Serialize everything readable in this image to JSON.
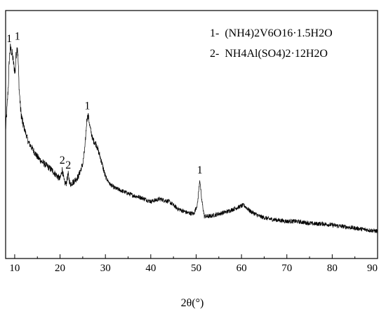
{
  "chart_data": {
    "type": "line",
    "title": "",
    "xlabel": "2θ(°)",
    "ylabel": "",
    "xlim": [
      8,
      90
    ],
    "ylim": [
      0,
      100
    ],
    "grid": false,
    "legend_position": "top-right",
    "x_ticks": [
      "10",
      "20",
      "30",
      "40",
      "50",
      "60",
      "70",
      "80",
      "90"
    ],
    "x_tick_values": [
      10,
      20,
      30,
      40,
      50,
      60,
      70,
      80,
      90
    ],
    "legend": [
      {
        "number": "1-",
        "formula": "(NH4)2V6O16·1.5H2O"
      },
      {
        "number": "2-",
        "formula": "NH4Al(SO4)2·12H2O"
      }
    ],
    "peak_labels": [
      {
        "text": "1",
        "x": 8.8
      },
      {
        "text": "1",
        "x": 10.6
      },
      {
        "text": "2",
        "x": 20.5
      },
      {
        "text": "2",
        "x": 21.8
      },
      {
        "text": "1",
        "x": 26.0
      },
      {
        "text": "1",
        "x": 50.8
      }
    ],
    "series": [
      {
        "values": [
          [
            8.0,
            52
          ],
          [
            8.3,
            60
          ],
          [
            8.6,
            70
          ],
          [
            8.8,
            80
          ],
          [
            9.0,
            85
          ],
          [
            9.2,
            84
          ],
          [
            9.5,
            82
          ],
          [
            9.8,
            78
          ],
          [
            10.1,
            75
          ],
          [
            10.3,
            82
          ],
          [
            10.6,
            86
          ],
          [
            10.8,
            78
          ],
          [
            11.0,
            68
          ],
          [
            11.3,
            60
          ],
          [
            11.7,
            55
          ],
          [
            12.2,
            52
          ],
          [
            13.0,
            47
          ],
          [
            14.0,
            44
          ],
          [
            15.0,
            41
          ],
          [
            16.0,
            39
          ],
          [
            17.0,
            37.5
          ],
          [
            18.0,
            36
          ],
          [
            19.0,
            34
          ],
          [
            20.0,
            32
          ],
          [
            20.5,
            36
          ],
          [
            20.9,
            31
          ],
          [
            21.3,
            30
          ],
          [
            21.8,
            34
          ],
          [
            22.2,
            30
          ],
          [
            23.0,
            31
          ],
          [
            24.0,
            33
          ],
          [
            25.0,
            38
          ],
          [
            25.5,
            45
          ],
          [
            25.9,
            56
          ],
          [
            26.2,
            58
          ],
          [
            26.6,
            53
          ],
          [
            27.2,
            48
          ],
          [
            28.0,
            46
          ],
          [
            29.0,
            40
          ],
          [
            30.0,
            33
          ],
          [
            31.0,
            30
          ],
          [
            32.0,
            28.5
          ],
          [
            34.0,
            27
          ],
          [
            36.0,
            25.5
          ],
          [
            38.0,
            24.5
          ],
          [
            40.0,
            23
          ],
          [
            42.0,
            24
          ],
          [
            44.0,
            23
          ],
          [
            46.0,
            20
          ],
          [
            48.0,
            18.5
          ],
          [
            49.5,
            18
          ],
          [
            50.3,
            22
          ],
          [
            50.8,
            32
          ],
          [
            51.2,
            24
          ],
          [
            51.8,
            17
          ],
          [
            53.0,
            17
          ],
          [
            55.0,
            18
          ],
          [
            57.0,
            19
          ],
          [
            59.0,
            20.5
          ],
          [
            60.5,
            21.5
          ],
          [
            62.0,
            19
          ],
          [
            64.0,
            17
          ],
          [
            66.0,
            16
          ],
          [
            68.0,
            15.5
          ],
          [
            70.0,
            15
          ],
          [
            72.0,
            15
          ],
          [
            74.0,
            14.5
          ],
          [
            76.0,
            14
          ],
          [
            78.0,
            14
          ],
          [
            80.0,
            13.5
          ],
          [
            82.0,
            13
          ],
          [
            84.0,
            12.5
          ],
          [
            86.0,
            12
          ],
          [
            88.0,
            11.5
          ],
          [
            90.0,
            11
          ]
        ]
      }
    ]
  }
}
